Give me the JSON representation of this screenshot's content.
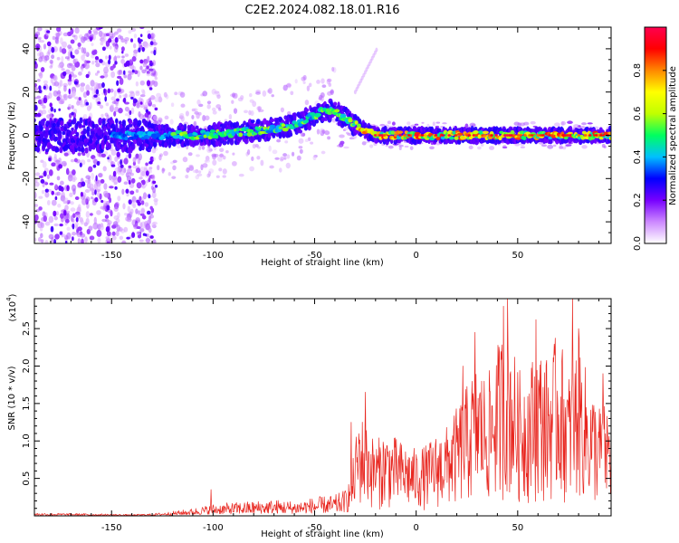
{
  "title": "C2E2.2024.082.18.01.R16",
  "chart_data": [
    {
      "type": "heatmap",
      "xlabel": "Height of straight line (km)",
      "ylabel": "Frequency (Hz)",
      "xlim": [
        -188,
        96
      ],
      "ylim": [
        -50,
        50
      ],
      "x_ticks": [
        -150,
        -100,
        -50,
        0,
        50
      ],
      "x_tick_labels": [
        "-150",
        "-100",
        "-50",
        "0",
        "50"
      ],
      "y_ticks": [
        -40,
        -20,
        0,
        20,
        40
      ],
      "y_tick_labels": [
        "-40",
        "-20",
        "0",
        "20",
        "40"
      ],
      "grid": false,
      "ridge_line": {
        "x": [
          -188,
          -170,
          -150,
          -130,
          -110,
          -90,
          -70,
          -60,
          -50,
          -45,
          -40,
          -35,
          -30,
          -25,
          -20,
          -10,
          0,
          20,
          40,
          60,
          80,
          96
        ],
        "y": [
          0,
          0,
          0,
          0,
          0,
          1,
          3,
          5,
          9,
          12,
          11,
          8,
          5,
          2,
          0,
          0,
          0,
          0,
          0,
          0,
          0,
          0
        ]
      },
      "colorbar": {
        "label": "Normalized spectral amplitude",
        "range": [
          0.0,
          1.0
        ],
        "ticks": [
          0.0,
          0.2,
          0.4,
          0.6,
          0.8
        ],
        "tick_labels": [
          "0.0",
          "0.2",
          "0.4",
          "0.6",
          "0.8"
        ],
        "colormap": [
          "#ffffff",
          "#cc88ff",
          "#7700ff",
          "#0000ff",
          "#00c0ff",
          "#00ff60",
          "#c0ff00",
          "#ffff00",
          "#ff8800",
          "#ff0000",
          "#ff0050"
        ]
      }
    },
    {
      "type": "line",
      "xlabel": "Height of straight line (km)",
      "ylabel": "SNR (10 * v/v)",
      "y_multiplier": "(x10",
      "y_multiplier_exp": "4",
      "y_multiplier_close": ")",
      "xlim": [
        -188,
        96
      ],
      "ylim": [
        0,
        2.9
      ],
      "x_ticks": [
        -150,
        -100,
        -50,
        0,
        50
      ],
      "x_tick_labels": [
        "-150",
        "-100",
        "-50",
        "0",
        "50"
      ],
      "y_ticks": [
        0.5,
        1.0,
        1.5,
        2.0,
        2.5
      ],
      "y_tick_labels": [
        "0.5",
        "1.0",
        "1.5",
        "2.0",
        "2.5"
      ],
      "grid": false,
      "series": [
        {
          "color": "#e8261f",
          "envelope": {
            "x": [
              -188,
              -160,
              -140,
              -130,
              -120,
              -110,
              -100,
              -90,
              -80,
              -70,
              -60,
              -50,
              -40,
              -35,
              -32,
              -30,
              -28,
              -25,
              -20,
              -15,
              -10,
              -5,
              0,
              5,
              10,
              15,
              20,
              25,
              30,
              35,
              40,
              45,
              50,
              55,
              60,
              65,
              70,
              75,
              80,
              85,
              90,
              96
            ],
            "y": [
              0.04,
              0.03,
              0.02,
              0.03,
              0.06,
              0.1,
              0.16,
              0.18,
              0.2,
              0.22,
              0.2,
              0.25,
              0.28,
              0.35,
              0.55,
              1.0,
              1.4,
              1.25,
              1.0,
              1.15,
              1.05,
              0.95,
              0.9,
              0.95,
              1.1,
              1.2,
              1.45,
              1.75,
              2.1,
              1.85,
              2.3,
              2.7,
              1.95,
              2.0,
              2.3,
              2.1,
              2.5,
              1.9,
              2.4,
              1.8,
              1.5,
              1.5
            ]
          },
          "peaks": [
            {
              "x": -101,
              "y": 0.35
            },
            {
              "x": -32,
              "y": 1.25
            },
            {
              "x": -25,
              "y": 1.65
            },
            {
              "x": 23,
              "y": 2.0
            },
            {
              "x": 29,
              "y": 2.45
            },
            {
              "x": 43,
              "y": 2.8
            },
            {
              "x": 45,
              "y": 2.9
            },
            {
              "x": 59,
              "y": 2.62
            },
            {
              "x": 77,
              "y": 2.9
            },
            {
              "x": 80,
              "y": 2.5
            },
            {
              "x": 92,
              "y": 1.9
            }
          ]
        }
      ]
    }
  ]
}
